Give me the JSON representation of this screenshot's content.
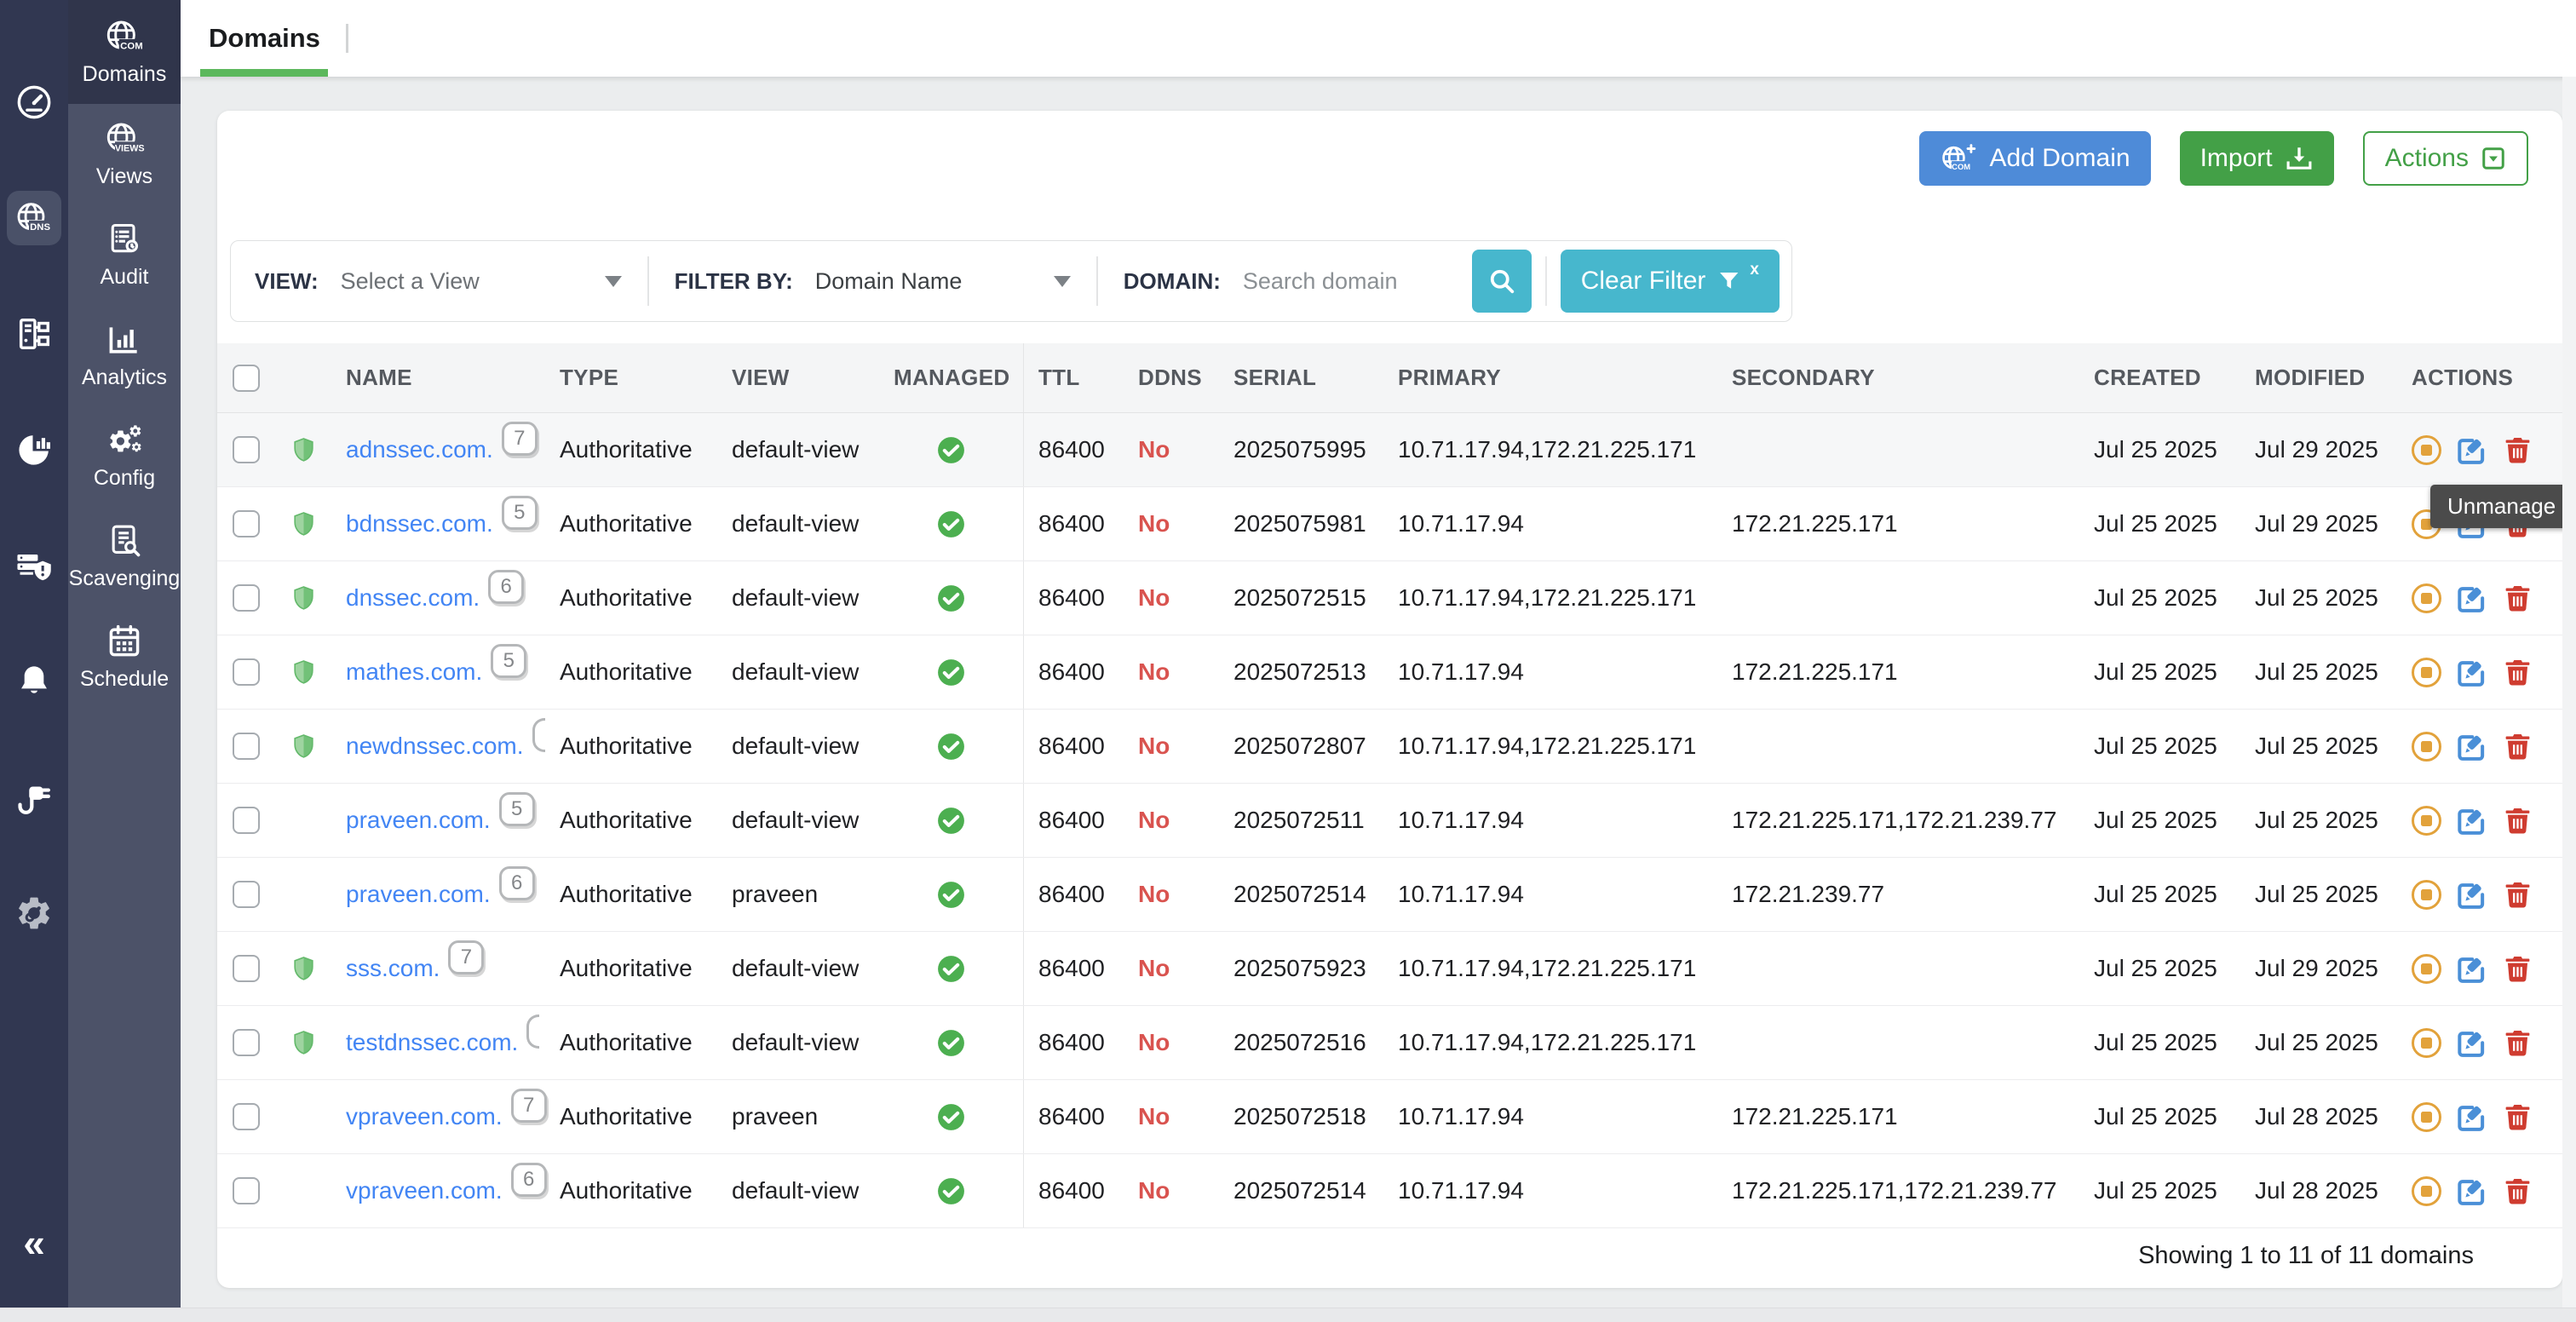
{
  "tabs": {
    "domains": "Domains"
  },
  "toolbar": {
    "add_domain": "Add Domain",
    "import": "Import",
    "actions": "Actions"
  },
  "filter_bar": {
    "view_label": "VIEW:",
    "view_value": "Select a View",
    "filter_by_label": "FILTER BY:",
    "filter_by_value": "Domain Name",
    "domain_label": "DOMAIN:",
    "domain_placeholder": "Search domain",
    "clear_filter_label": "Clear Filter"
  },
  "sidebar": {
    "primary_icons": [
      "dashboard-icon",
      "dns-globe-icon",
      "network-tree-icon",
      "pie-chart-icon",
      "server-shield-icon",
      "bell-icon",
      "plug-icon",
      "settings-gear-icon"
    ],
    "active_primary": "dns-globe-icon",
    "collapse": "«",
    "secondary": [
      {
        "label": "Domains",
        "icon": "globe-com-icon",
        "active": true
      },
      {
        "label": "Views",
        "icon": "globe-views-icon",
        "active": false
      },
      {
        "label": "Audit",
        "icon": "audit-icon",
        "active": false
      },
      {
        "label": "Analytics",
        "icon": "analytics-icon",
        "active": false
      },
      {
        "label": "Config",
        "icon": "config-gears-icon",
        "active": false
      },
      {
        "label": "Scavenging",
        "icon": "scavenging-icon",
        "active": false
      },
      {
        "label": "Schedule",
        "icon": "schedule-calendar-icon",
        "active": false
      }
    ]
  },
  "table": {
    "columns": [
      "NAME",
      "TYPE",
      "VIEW",
      "MANAGED",
      "TTL",
      "DDNS",
      "SERIAL",
      "PRIMARY",
      "SECONDARY",
      "CREATED",
      "MODIFIED",
      "ACTIONS"
    ],
    "rows": [
      {
        "name": "adnssec.com.",
        "badge": "7",
        "badge_partial": false,
        "dnssec": true,
        "type": "Authoritative",
        "view": "default-view",
        "managed": true,
        "ttl": "86400",
        "ddns": "No",
        "serial": "2025075995",
        "primary": "10.71.17.94,172.21.225.171",
        "secondary": "",
        "created": "Jul 25 2025",
        "modified": "Jul 29 2025",
        "hover": true
      },
      {
        "name": "bdnssec.com.",
        "badge": "5",
        "badge_partial": false,
        "dnssec": true,
        "type": "Authoritative",
        "view": "default-view",
        "managed": true,
        "ttl": "86400",
        "ddns": "No",
        "serial": "2025075981",
        "primary": "10.71.17.94",
        "secondary": "172.21.225.171",
        "created": "Jul 25 2025",
        "modified": "Jul 29 2025",
        "hover": false
      },
      {
        "name": "dnssec.com.",
        "badge": "6",
        "badge_partial": false,
        "dnssec": true,
        "type": "Authoritative",
        "view": "default-view",
        "managed": true,
        "ttl": "86400",
        "ddns": "No",
        "serial": "2025072515",
        "primary": "10.71.17.94,172.21.225.171",
        "secondary": "",
        "created": "Jul 25 2025",
        "modified": "Jul 25 2025",
        "hover": false
      },
      {
        "name": "mathes.com.",
        "badge": "5",
        "badge_partial": false,
        "dnssec": true,
        "type": "Authoritative",
        "view": "default-view",
        "managed": true,
        "ttl": "86400",
        "ddns": "No",
        "serial": "2025072513",
        "primary": "10.71.17.94",
        "secondary": "172.21.225.171",
        "created": "Jul 25 2025",
        "modified": "Jul 25 2025",
        "hover": false
      },
      {
        "name": "newdnssec.com.",
        "badge": "",
        "badge_partial": true,
        "dnssec": true,
        "type": "Authoritative",
        "view": "default-view",
        "managed": true,
        "ttl": "86400",
        "ddns": "No",
        "serial": "2025072807",
        "primary": "10.71.17.94,172.21.225.171",
        "secondary": "",
        "created": "Jul 25 2025",
        "modified": "Jul 25 2025",
        "hover": false
      },
      {
        "name": "praveen.com.",
        "badge": "5",
        "badge_partial": false,
        "dnssec": false,
        "type": "Authoritative",
        "view": "default-view",
        "managed": true,
        "ttl": "86400",
        "ddns": "No",
        "serial": "2025072511",
        "primary": "10.71.17.94",
        "secondary": "172.21.225.171,172.21.239.77",
        "created": "Jul 25 2025",
        "modified": "Jul 25 2025",
        "hover": false
      },
      {
        "name": "praveen.com.",
        "badge": "6",
        "badge_partial": false,
        "dnssec": false,
        "type": "Authoritative",
        "view": "praveen",
        "managed": true,
        "ttl": "86400",
        "ddns": "No",
        "serial": "2025072514",
        "primary": "10.71.17.94",
        "secondary": "172.21.239.77",
        "created": "Jul 25 2025",
        "modified": "Jul 25 2025",
        "hover": false
      },
      {
        "name": "sss.com.",
        "badge": "7",
        "badge_partial": false,
        "dnssec": true,
        "type": "Authoritative",
        "view": "default-view",
        "managed": true,
        "ttl": "86400",
        "ddns": "No",
        "serial": "2025075923",
        "primary": "10.71.17.94,172.21.225.171",
        "secondary": "",
        "created": "Jul 25 2025",
        "modified": "Jul 29 2025",
        "hover": false
      },
      {
        "name": "testdnssec.com.",
        "badge": "",
        "badge_partial": true,
        "dnssec": true,
        "type": "Authoritative",
        "view": "default-view",
        "managed": true,
        "ttl": "86400",
        "ddns": "No",
        "serial": "2025072516",
        "primary": "10.71.17.94,172.21.225.171",
        "secondary": "",
        "created": "Jul 25 2025",
        "modified": "Jul 25 2025",
        "hover": false
      },
      {
        "name": "vpraveen.com.",
        "badge": "7",
        "badge_partial": false,
        "dnssec": false,
        "type": "Authoritative",
        "view": "praveen",
        "managed": true,
        "ttl": "86400",
        "ddns": "No",
        "serial": "2025072518",
        "primary": "10.71.17.94",
        "secondary": "172.21.225.171",
        "created": "Jul 25 2025",
        "modified": "Jul 28 2025",
        "hover": false
      },
      {
        "name": "vpraveen.com.",
        "badge": "6",
        "badge_partial": false,
        "dnssec": false,
        "type": "Authoritative",
        "view": "default-view",
        "managed": true,
        "ttl": "86400",
        "ddns": "No",
        "serial": "2025072514",
        "primary": "10.71.17.94",
        "secondary": "172.21.225.171,172.21.239.77",
        "created": "Jul 25 2025",
        "modified": "Jul 28 2025",
        "hover": false
      }
    ]
  },
  "tooltip": "Unmanage",
  "footer": {
    "summary": "Showing 1 to 11 of 11 domains"
  },
  "colors": {
    "accent_blue": "#4e8bd8",
    "accent_green": "#43a047",
    "teal": "#47b7cd",
    "link_blue": "#4285f4",
    "danger_red": "#d9534f",
    "warn_orange": "#e2a23b",
    "sidebar_dark": "#313751",
    "sidebar_slate": "#4c5268",
    "tab_underline_green": "#5cb85c"
  }
}
